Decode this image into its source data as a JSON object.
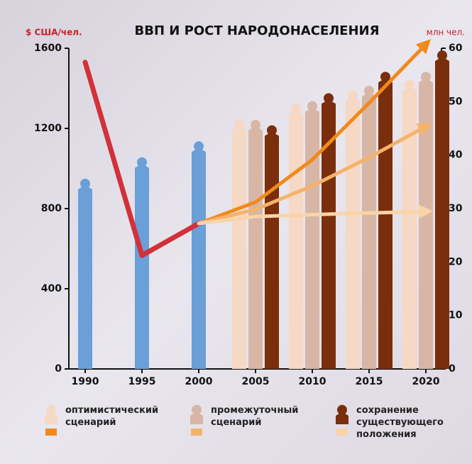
{
  "chart_data": {
    "type": "bar",
    "title": "ВВП И РОСТ НАРОДОНАСЕЛЕНИЯ",
    "y_label": "$ США/чел.",
    "y2_label": "млн чел.",
    "categories": [
      "1990",
      "1995",
      "2000",
      "2005",
      "2010",
      "2015",
      "2020"
    ],
    "category_colors": [
      "#111111",
      "#111111",
      "#d4202a",
      "#111111",
      "#111111",
      "#111111",
      "#111111"
    ],
    "ylim": [
      0,
      1600
    ],
    "yticks": [
      0,
      400,
      800,
      1200,
      1600
    ],
    "y2lim": [
      0,
      60
    ],
    "y2ticks": [
      0,
      10,
      20,
      30,
      40,
      50,
      60
    ],
    "series": [
      {
        "type": "bar",
        "axis": "y2",
        "color": "#6a9fd8",
        "values": [
          36,
          40,
          43,
          null,
          null,
          null,
          null
        ]
      },
      {
        "name": "оптимистический сценарий",
        "type": "bar",
        "axis": "y2",
        "color": "#f6d8c4",
        "line_color": "#f08a1c",
        "values": [
          null,
          null,
          null,
          47,
          50,
          52.5,
          54.5
        ]
      },
      {
        "name": "промежуточный сценарий",
        "type": "bar",
        "axis": "y2",
        "color": "#d8b6a6",
        "line_color": "#f5b26a",
        "values": [
          null,
          null,
          null,
          47,
          50.5,
          53.4,
          56
        ]
      },
      {
        "name": "сохранение существующего положения",
        "type": "bar",
        "axis": "y2",
        "color": "#7a2e0c",
        "line_color": "#f9d4a8",
        "values": [
          null,
          null,
          null,
          46,
          52,
          56,
          60
        ]
      },
      {
        "type": "line",
        "axis": "y",
        "color": "#d2303a",
        "arrow": false,
        "values": [
          1530,
          566,
          726,
          null,
          null,
          null,
          null
        ]
      },
      {
        "type": "line",
        "axis": "y",
        "color": "#f08a1c",
        "arrow": true,
        "values": [
          null,
          null,
          726,
          832,
          1044,
          1327,
          1620
        ]
      },
      {
        "type": "line",
        "axis": "y",
        "color": "#f5b26a",
        "arrow": true,
        "values": [
          null,
          null,
          726,
          796,
          913,
          1055,
          1210
        ]
      },
      {
        "type": "line",
        "axis": "y",
        "color": "#f9d4a8",
        "arrow": true,
        "values": [
          null,
          null,
          726,
          760,
          770,
          778,
          786
        ]
      }
    ]
  }
}
